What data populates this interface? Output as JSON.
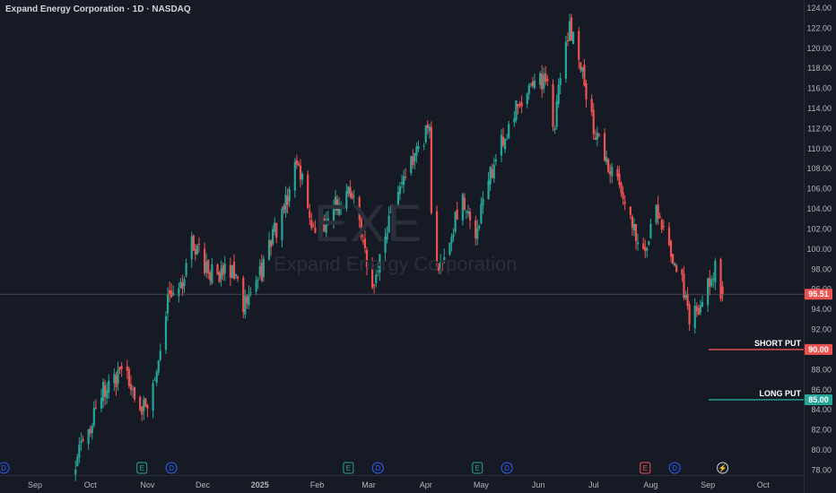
{
  "header": {
    "title": "Expand Energy Corporation · 1D · NASDAQ"
  },
  "watermark": {
    "ticker": "EXE",
    "name": "Expand Energy Corporation"
  },
  "colors": {
    "background": "#161a25",
    "up": "#26a69a",
    "down": "#ef5350",
    "axis_text": "#b2b5be",
    "grid": "#1f2330",
    "event_blue": "#2962ff"
  },
  "chart_data": {
    "type": "candlestick",
    "symbol": "EXE",
    "exchange": "NASDAQ",
    "interval": "1D",
    "ylim": [
      77.5,
      124.8
    ],
    "xlim": [
      "2024-08-13",
      "2025-10-23"
    ],
    "grid": false,
    "y_ticks": [
      "124.00",
      "122.00",
      "120.00",
      "118.00",
      "116.00",
      "114.00",
      "112.00",
      "110.00",
      "108.00",
      "106.00",
      "104.00",
      "102.00",
      "100.00",
      "98.00",
      "96.00",
      "94.00",
      "92.00",
      "90.00",
      "88.00",
      "86.00",
      "84.00",
      "82.00",
      "80.00",
      "78.00"
    ],
    "x_ticks": [
      {
        "label": "Sep",
        "date": "2024-09-01"
      },
      {
        "label": "Oct",
        "date": "2024-10-01"
      },
      {
        "label": "Nov",
        "date": "2024-11-01"
      },
      {
        "label": "Dec",
        "date": "2024-12-01"
      },
      {
        "label": "2025",
        "date": "2025-01-01"
      },
      {
        "label": "Feb",
        "date": "2025-02-01"
      },
      {
        "label": "Mar",
        "date": "2025-03-01"
      },
      {
        "label": "Apr",
        "date": "2025-04-01"
      },
      {
        "label": "May",
        "date": "2025-05-01"
      },
      {
        "label": "Jun",
        "date": "2025-06-01"
      },
      {
        "label": "Jul",
        "date": "2025-07-01"
      },
      {
        "label": "Aug",
        "date": "2025-08-01"
      },
      {
        "label": "Sep",
        "date": "2025-09-01"
      },
      {
        "label": "Oct",
        "date": "2025-10-01"
      }
    ],
    "price_path": [
      {
        "date": "2024-09-23",
        "close": 78.0
      },
      {
        "date": "2024-09-26",
        "close": 80.5
      },
      {
        "date": "2024-10-01",
        "close": 82.5
      },
      {
        "date": "2024-10-07",
        "close": 85.5
      },
      {
        "date": "2024-10-14",
        "close": 87.0
      },
      {
        "date": "2024-10-21",
        "close": 87.5
      },
      {
        "date": "2024-10-28",
        "close": 84.0
      },
      {
        "date": "2024-11-04",
        "close": 86.0
      },
      {
        "date": "2024-11-07",
        "close": 89.5
      },
      {
        "date": "2024-11-12",
        "close": 94.5
      },
      {
        "date": "2024-11-19",
        "close": 96.0
      },
      {
        "date": "2024-11-25",
        "close": 101.0
      },
      {
        "date": "2024-12-02",
        "close": 98.5
      },
      {
        "date": "2024-12-09",
        "close": 97.0
      },
      {
        "date": "2024-12-16",
        "close": 98.0
      },
      {
        "date": "2024-12-23",
        "close": 94.5
      },
      {
        "date": "2024-12-30",
        "close": 96.0
      },
      {
        "date": "2025-01-06",
        "close": 100.5
      },
      {
        "date": "2025-01-13",
        "close": 103.0
      },
      {
        "date": "2025-01-20",
        "close": 108.0
      },
      {
        "date": "2025-01-24",
        "close": 106.5
      },
      {
        "date": "2025-01-31",
        "close": 101.0
      },
      {
        "date": "2025-02-07",
        "close": 103.5
      },
      {
        "date": "2025-02-14",
        "close": 105.0
      },
      {
        "date": "2025-02-21",
        "close": 106.0
      },
      {
        "date": "2025-02-28",
        "close": 99.0
      },
      {
        "date": "2025-03-04",
        "close": 96.5
      },
      {
        "date": "2025-03-10",
        "close": 101.5
      },
      {
        "date": "2025-03-17",
        "close": 105.0
      },
      {
        "date": "2025-03-24",
        "close": 109.0
      },
      {
        "date": "2025-03-31",
        "close": 111.0
      },
      {
        "date": "2025-04-03",
        "close": 113.0
      },
      {
        "date": "2025-04-04",
        "close": 103.0
      },
      {
        "date": "2025-04-08",
        "close": 97.5
      },
      {
        "date": "2025-04-14",
        "close": 101.0
      },
      {
        "date": "2025-04-21",
        "close": 105.0
      },
      {
        "date": "2025-04-28",
        "close": 102.0
      },
      {
        "date": "2025-05-01",
        "close": 104.0
      },
      {
        "date": "2025-05-09",
        "close": 109.0
      },
      {
        "date": "2025-05-16",
        "close": 112.0
      },
      {
        "date": "2025-05-23",
        "close": 115.0
      },
      {
        "date": "2025-05-30",
        "close": 117.0
      },
      {
        "date": "2025-06-06",
        "close": 116.0
      },
      {
        "date": "2025-06-10",
        "close": 112.0
      },
      {
        "date": "2025-06-13",
        "close": 117.0
      },
      {
        "date": "2025-06-18",
        "close": 122.0
      },
      {
        "date": "2025-06-23",
        "close": 119.0
      },
      {
        "date": "2025-06-26",
        "close": 116.0
      },
      {
        "date": "2025-07-01",
        "close": 112.0
      },
      {
        "date": "2025-07-07",
        "close": 109.0
      },
      {
        "date": "2025-07-14",
        "close": 107.0
      },
      {
        "date": "2025-07-21",
        "close": 103.0
      },
      {
        "date": "2025-07-28",
        "close": 99.5
      },
      {
        "date": "2025-08-04",
        "close": 104.0
      },
      {
        "date": "2025-08-11",
        "close": 100.0
      },
      {
        "date": "2025-08-18",
        "close": 96.5
      },
      {
        "date": "2025-08-22",
        "close": 93.0
      },
      {
        "date": "2025-08-27",
        "close": 94.5
      },
      {
        "date": "2025-09-02",
        "close": 97.0
      },
      {
        "date": "2025-09-05",
        "close": 98.0
      },
      {
        "date": "2025-09-09",
        "close": 95.51
      }
    ],
    "last_price": {
      "value": 95.51,
      "label": "95.51",
      "color": "#ef5350"
    },
    "horizontal_lines": [
      {
        "name": "SHORT PUT",
        "value": 90.0,
        "label": "90.00",
        "color": "#ef5350"
      },
      {
        "name": "LONG PUT",
        "value": 85.0,
        "label": "85.00",
        "color": "#26a69a"
      }
    ],
    "events": [
      {
        "type": "D",
        "date": "2024-08-15",
        "color": "#2962ff"
      },
      {
        "type": "E",
        "date": "2024-10-29",
        "color": "#26a69a"
      },
      {
        "type": "D",
        "date": "2024-11-14",
        "color": "#2962ff"
      },
      {
        "type": "E",
        "date": "2025-02-18",
        "color": "#26a69a"
      },
      {
        "type": "D",
        "date": "2025-03-06",
        "color": "#2962ff"
      },
      {
        "type": "E",
        "date": "2025-04-29",
        "color": "#26a69a"
      },
      {
        "type": "D",
        "date": "2025-05-15",
        "color": "#2962ff"
      },
      {
        "type": "E",
        "date": "2025-07-29",
        "color": "#ef5350"
      },
      {
        "type": "D",
        "date": "2025-08-14",
        "color": "#2962ff"
      },
      {
        "type": "⚡",
        "date": "2025-09-09",
        "color": "#d1d4dc"
      }
    ]
  }
}
